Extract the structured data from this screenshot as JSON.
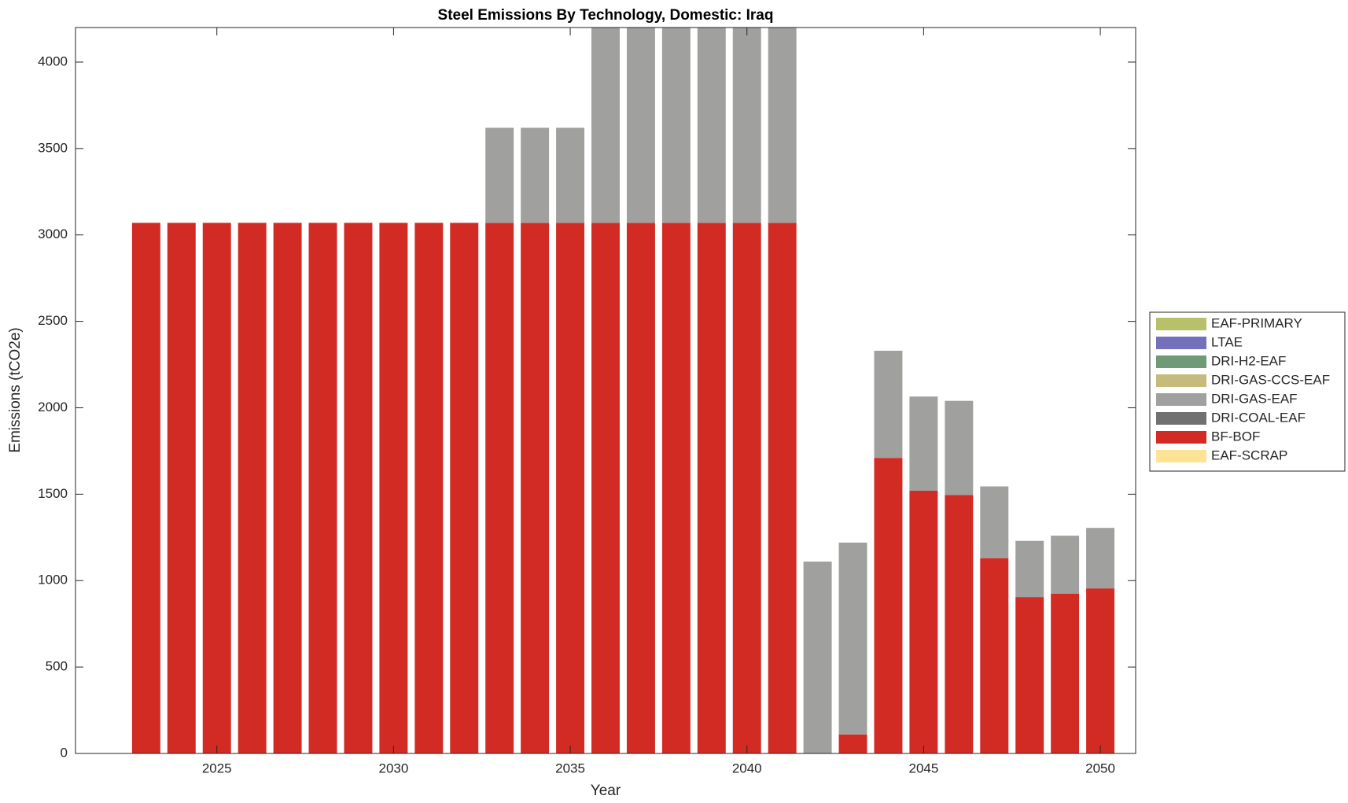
{
  "chart_data": {
    "type": "stacked-bar",
    "title": "Steel Emissions By Technology, Domestic: Iraq",
    "x_label": "Year",
    "y_label": "Emissions (tCO2e)",
    "x": [
      2023,
      2024,
      2025,
      2026,
      2027,
      2028,
      2029,
      2030,
      2031,
      2032,
      2033,
      2034,
      2035,
      2036,
      2037,
      2038,
      2039,
      2040,
      2041,
      2042,
      2043,
      2044,
      2045,
      2046,
      2047,
      2048,
      2049,
      2050
    ],
    "xlim": [
      2021,
      2051
    ],
    "xticks": [
      2025,
      2030,
      2035,
      2040,
      2045,
      2050
    ],
    "ylim": [
      0,
      4200
    ],
    "yticks": [
      0,
      500,
      1000,
      1500,
      2000,
      2500,
      3000,
      3500,
      4000
    ],
    "legend_position": "right",
    "series": [
      {
        "name": "EAF-PRIMARY",
        "color": "#b8c06a",
        "values": [
          0,
          0,
          0,
          0,
          0,
          0,
          0,
          0,
          0,
          0,
          0,
          0,
          0,
          0,
          0,
          0,
          0,
          0,
          0,
          0,
          0,
          0,
          0,
          0,
          0,
          0,
          0,
          0
        ]
      },
      {
        "name": "LTAE",
        "color": "#7570bb",
        "values": [
          0,
          0,
          0,
          0,
          0,
          0,
          0,
          0,
          0,
          0,
          0,
          0,
          0,
          0,
          0,
          0,
          0,
          0,
          0,
          0,
          0,
          0,
          0,
          0,
          0,
          0,
          0,
          0
        ]
      },
      {
        "name": "DRI-H2-EAF",
        "color": "#6f9a76",
        "values": [
          0,
          0,
          0,
          0,
          0,
          0,
          0,
          0,
          0,
          0,
          0,
          0,
          0,
          0,
          0,
          0,
          0,
          0,
          0,
          0,
          0,
          0,
          0,
          0,
          0,
          0,
          0,
          0
        ]
      },
      {
        "name": "DRI-GAS-CCS-EAF",
        "color": "#c6bb7c",
        "values": [
          0,
          0,
          0,
          0,
          0,
          0,
          0,
          0,
          0,
          0,
          0,
          0,
          0,
          0,
          0,
          0,
          0,
          0,
          0,
          0,
          0,
          0,
          0,
          0,
          0,
          0,
          0,
          0
        ]
      },
      {
        "name": "DRI-GAS-EAF",
        "color": "#a0a09f",
        "values": [
          0,
          0,
          0,
          0,
          0,
          0,
          0,
          0,
          0,
          0,
          550,
          550,
          550,
          1130,
          1130,
          1130,
          1130,
          1130,
          1130,
          1110,
          1110,
          620,
          545,
          545,
          415,
          325,
          335,
          350
        ]
      },
      {
        "name": "DRI-COAL-EAF",
        "color": "#707070",
        "values": [
          0,
          0,
          0,
          0,
          0,
          0,
          0,
          0,
          0,
          0,
          0,
          0,
          0,
          0,
          0,
          0,
          0,
          0,
          0,
          0,
          0,
          0,
          0,
          0,
          0,
          0,
          0,
          0
        ]
      },
      {
        "name": "BF-BOF",
        "color": "#d22b24",
        "values": [
          3070,
          3070,
          3070,
          3070,
          3070,
          3070,
          3070,
          3070,
          3070,
          3070,
          3070,
          3070,
          3070,
          3070,
          3070,
          3070,
          3070,
          3070,
          3070,
          0,
          110,
          1710,
          1520,
          1495,
          1130,
          905,
          925,
          955
        ]
      },
      {
        "name": "EAF-SCRAP",
        "color": "#fde395",
        "values": [
          0,
          0,
          0,
          0,
          0,
          0,
          0,
          0,
          0,
          0,
          0,
          0,
          0,
          0,
          0,
          0,
          0,
          0,
          0,
          0,
          0,
          0,
          0,
          0,
          0,
          0,
          0,
          0
        ]
      }
    ]
  }
}
